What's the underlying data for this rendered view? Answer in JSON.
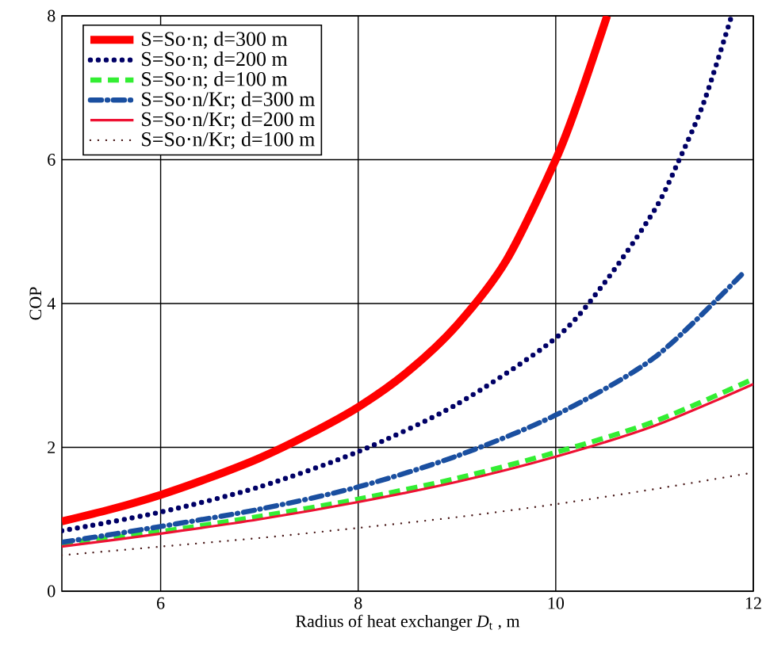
{
  "chart_data": {
    "type": "line",
    "xlabel": "Radius of heat exchanger *D*$_{t}$ , m",
    "ylabel": "COP",
    "xlim": [
      5,
      12
    ],
    "ylim": [
      0,
      8
    ],
    "xticks": [
      6,
      8,
      10,
      12
    ],
    "yticks": [
      0,
      2,
      4,
      6,
      8
    ],
    "grid": true,
    "legend": "top left",
    "series": [
      {
        "name": "S=So·n; d=300 m",
        "color": "#ff0000",
        "line_style": "solid",
        "x": [
          5,
          5.5,
          6,
          6.5,
          7,
          7.5,
          8,
          8.5,
          9,
          9.5,
          10,
          10.25,
          10.52
        ],
        "values": [
          0.97,
          1.14,
          1.34,
          1.58,
          1.85,
          2.18,
          2.56,
          3.05,
          3.7,
          4.6,
          6.0,
          6.9,
          8
        ]
      },
      {
        "name": "S=So·n; d=200 m",
        "color": "#000066",
        "line_style": "dotted",
        "x": [
          5,
          6,
          7,
          8,
          9,
          10,
          10.5,
          11,
          11.25,
          11.5,
          11.78
        ],
        "values": [
          0.84,
          1.1,
          1.45,
          1.94,
          2.6,
          3.52,
          4.3,
          5.3,
          6.0,
          6.8,
          8
        ]
      },
      {
        "name": "S=So·n; d=100 m",
        "color": "#33ee33",
        "line_style": "dashed",
        "x": [
          5,
          6,
          7,
          8,
          9,
          10,
          11,
          12
        ],
        "values": [
          0.66,
          0.83,
          1.04,
          1.28,
          1.57,
          1.93,
          2.36,
          2.95
        ]
      },
      {
        "name": "S=So·n/Kr; d=300 m",
        "color": "#1a4fa0",
        "line_style": "dashdot",
        "x": [
          5,
          6,
          7,
          8,
          9,
          10,
          11,
          11.88
        ],
        "values": [
          0.68,
          0.9,
          1.14,
          1.45,
          1.88,
          2.45,
          3.25,
          4.4
        ]
      },
      {
        "name": "S=So·n/Kr; d=200 m",
        "color": "#ee1133",
        "line_style": "solid",
        "x": [
          5,
          6,
          7,
          8,
          9,
          10,
          11,
          12
        ],
        "values": [
          0.62,
          0.8,
          1.0,
          1.24,
          1.52,
          1.87,
          2.3,
          2.88
        ]
      },
      {
        "name": "S=So·n/Kr; d=100 m",
        "color": "#4a1a1a",
        "line_style": "dotted",
        "x": [
          5,
          6,
          7,
          8,
          9,
          10,
          11,
          12
        ],
        "values": [
          0.5,
          0.62,
          0.74,
          0.88,
          1.03,
          1.21,
          1.42,
          1.65
        ]
      }
    ]
  }
}
